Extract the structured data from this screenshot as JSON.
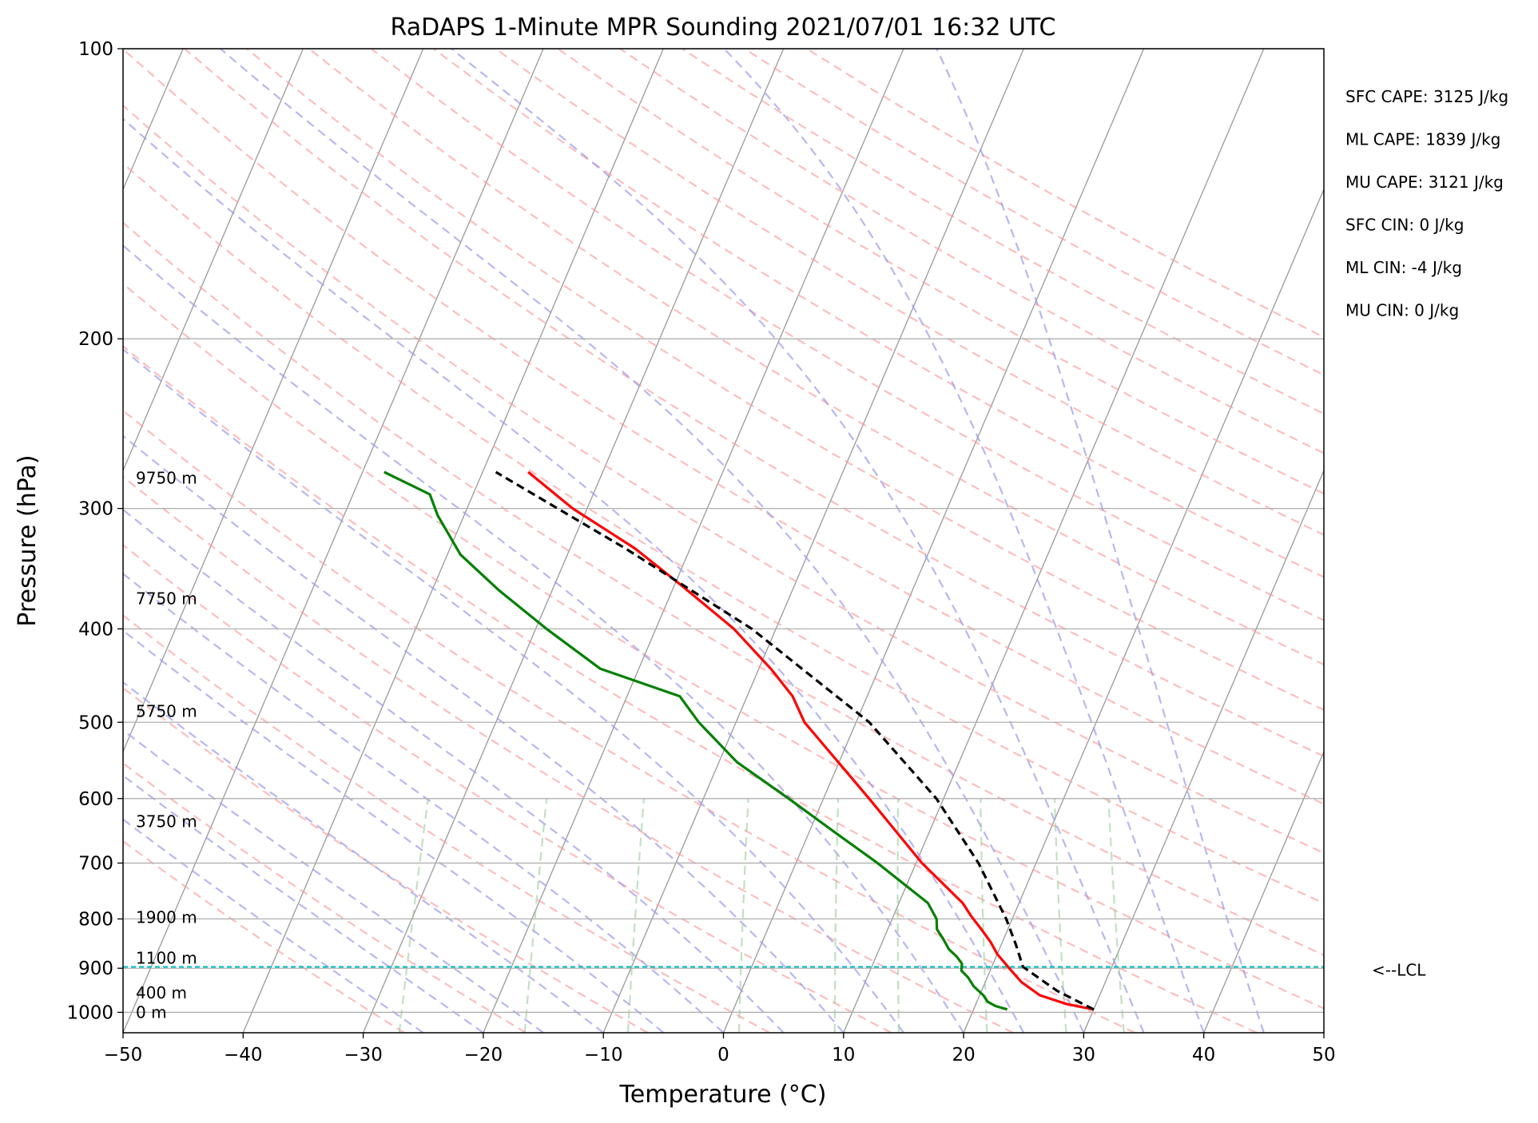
{
  "chart_data": {
    "type": "line",
    "title": "RaDAPS 1-Minute MPR Sounding 2021/07/01 16:32 UTC",
    "xlabel": "Temperature (°C)",
    "ylabel": "Pressure (hPa)",
    "xlim": [
      -50,
      50
    ],
    "ylim": [
      1050,
      100
    ],
    "y_scale": "log",
    "x_ticks": [
      -50,
      -40,
      -30,
      -20,
      -10,
      0,
      10,
      20,
      30,
      40,
      50
    ],
    "x_tick_labels": [
      "−50",
      "−40",
      "−30",
      "−20",
      "−10",
      "0",
      "10",
      "20",
      "30",
      "40",
      "50"
    ],
    "y_ticks": [
      100,
      200,
      300,
      400,
      500,
      600,
      700,
      800,
      900,
      1000
    ],
    "y_tick_labels": [
      "100",
      "200",
      "300",
      "400",
      "500",
      "600",
      "700",
      "800",
      "900",
      "1000"
    ],
    "grid": true,
    "skew": 35,
    "series": [
      {
        "role": "temperature",
        "color": "#ff0000",
        "pressure": [
          993,
          980,
          960,
          930,
          900,
          870,
          845,
          820,
          795,
          770,
          700,
          600,
          500,
          470,
          440,
          400,
          360,
          330,
          300,
          275
        ],
        "values": [
          30,
          27.5,
          25,
          23,
          21.5,
          20,
          19,
          17.8,
          16.5,
          15.3,
          10.5,
          3.8,
          -4.3,
          -6.2,
          -9,
          -13.5,
          -19.5,
          -24.6,
          -31.2,
          -36.2
        ]
      },
      {
        "role": "dewpoint",
        "color": "#008000",
        "pressure": [
          993,
          985,
          975,
          960,
          940,
          920,
          905,
          890,
          875,
          860,
          840,
          820,
          800,
          770,
          700,
          650,
          600,
          550,
          500,
          470,
          440,
          400,
          365,
          335,
          305,
          290,
          275
        ],
        "values": [
          22.8,
          21.7,
          20.9,
          20.3,
          19.2,
          18.4,
          17.6,
          17.4,
          16.7,
          15.8,
          15,
          14.1,
          13.7,
          12.4,
          6.8,
          2.1,
          -2.9,
          -8.5,
          -13.1,
          -15.6,
          -23.2,
          -29.1,
          -34.4,
          -38.9,
          -42.2,
          -43.6,
          -48.2
        ]
      },
      {
        "role": "parcel",
        "color": "#000000",
        "pressure": [
          993,
          950,
          897,
          850,
          800,
          700,
          600,
          500,
          400,
          330,
          275
        ],
        "values": [
          30,
          26.3,
          22.6,
          21.2,
          19.5,
          15.2,
          9.4,
          1.1,
          -12,
          -25.4,
          -38.9
        ]
      }
    ],
    "lcl": {
      "pressure": 897,
      "label": "<--LCL"
    },
    "height_labels": [
      {
        "text": "0 m",
        "pressure": 1000
      },
      {
        "text": "400 m",
        "pressure": 954
      },
      {
        "text": "1100 m",
        "pressure": 878
      },
      {
        "text": "1900 m",
        "pressure": 797
      },
      {
        "text": "3750 m",
        "pressure": 634
      },
      {
        "text": "5750 m",
        "pressure": 487
      },
      {
        "text": "7750 m",
        "pressure": 372
      },
      {
        "text": "9750 m",
        "pressure": 279
      }
    ],
    "annotations": [
      "SFC CAPE: 3125 J/kg",
      "ML CAPE: 1839 J/kg",
      "MU CAPE: 3121 J/kg",
      "SFC CIN: 0 J/kg",
      "ML CIN: -4 J/kg",
      "MU CIN: 0 J/kg"
    ],
    "colors": {
      "dry_adiabats": "#ff9999",
      "moist_adiabats": "#9999ee",
      "mixing_ratio": "#99cc99",
      "isotherms": "#999999",
      "lcl_line": "#00bfbf"
    }
  }
}
